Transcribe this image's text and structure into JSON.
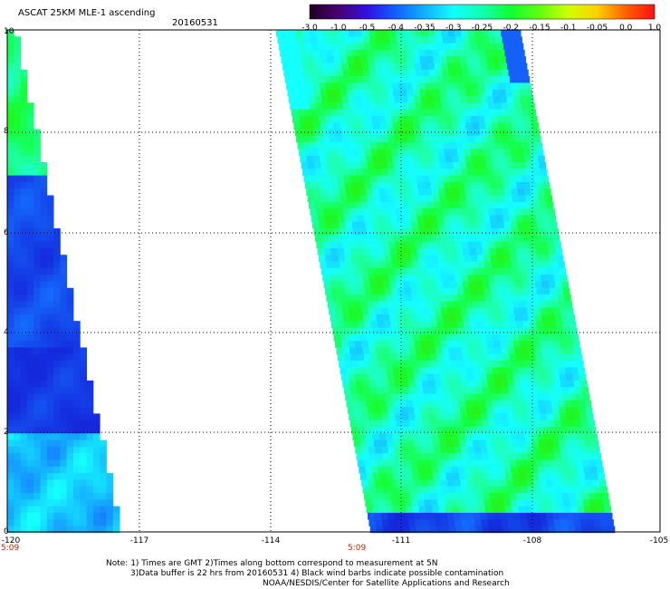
{
  "header": {
    "title": "ASCAT 25KM MLE-1 ascending",
    "date": "20160531"
  },
  "colorbar": {
    "labels": [
      "-3.0",
      "-1.0",
      "-0.5",
      "-0.4",
      "-0.35",
      "-0.3",
      "-0.25",
      "-0.2",
      "-0.15",
      "-0.1",
      "-0.05",
      "0.0",
      "1.0"
    ],
    "colors": [
      "#200020",
      "#4a0070",
      "#3010e0",
      "#1060ff",
      "#10b0ff",
      "#10ffff",
      "#10ffb0",
      "#10ff30",
      "#60ff10",
      "#d0ff00",
      "#ffd000",
      "#ff6000",
      "#ff1010"
    ]
  },
  "map": {
    "lat_ticks": [
      "0",
      "2",
      "4",
      "6",
      "8",
      "10"
    ],
    "lon_ticks": [
      "-120",
      "-117",
      "-114",
      "-111",
      "-108",
      "-105"
    ],
    "times": [
      "5:09",
      "5:09"
    ]
  },
  "footer": {
    "line1": "Note: 1) Times are GMT 2)Times along bottom correspond to measurement at 5N",
    "line2": "3)Data buffer is 22 hrs from 20160531 4) Black wind barbs indicate possible contamination",
    "line3": "NOAA/NESDIS/Center for Satellite Applications and Research"
  }
}
